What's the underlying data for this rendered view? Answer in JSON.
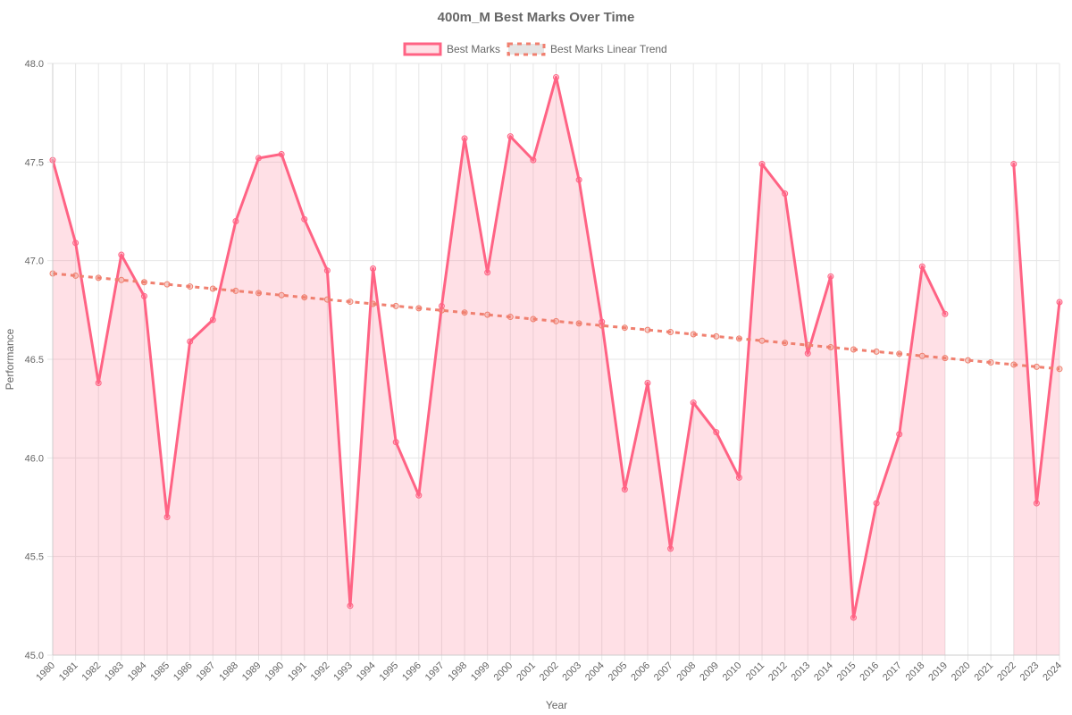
{
  "chart_data": {
    "type": "line",
    "title": "400m_M Best Marks Over Time",
    "xlabel": "Year",
    "ylabel": "Performance",
    "ylim": [
      45.0,
      48.0
    ],
    "yticks": [
      "45.0",
      "45.5",
      "46.0",
      "46.5",
      "47.0",
      "47.5",
      "48.0"
    ],
    "grid": true,
    "legend_position": "top",
    "categories": [
      "1980",
      "1981",
      "1982",
      "1983",
      "1984",
      "1985",
      "1986",
      "1987",
      "1988",
      "1989",
      "1990",
      "1991",
      "1992",
      "1993",
      "1994",
      "1995",
      "1996",
      "1997",
      "1998",
      "1999",
      "2000",
      "2001",
      "2002",
      "2003",
      "2004",
      "2005",
      "2006",
      "2007",
      "2008",
      "2009",
      "2010",
      "2011",
      "2012",
      "2013",
      "2014",
      "2015",
      "2016",
      "2017",
      "2018",
      "2019",
      "2020",
      "2021",
      "2022",
      "2023",
      "2024"
    ],
    "series": [
      {
        "name": "Best Marks",
        "color": "#ff6384",
        "fill": "rgba(255, 99, 132, 0.2)",
        "values": [
          47.51,
          47.09,
          46.38,
          47.03,
          46.82,
          45.7,
          46.59,
          46.7,
          47.2,
          47.52,
          47.54,
          47.21,
          46.95,
          45.25,
          46.96,
          46.08,
          45.81,
          46.77,
          47.62,
          46.94,
          47.63,
          47.51,
          47.93,
          47.41,
          46.69,
          45.84,
          46.38,
          45.54,
          46.28,
          46.13,
          45.9,
          47.49,
          47.34,
          46.53,
          46.92,
          45.19,
          45.77,
          46.12,
          46.97,
          46.73,
          null,
          null,
          47.49,
          45.77,
          46.79
        ]
      },
      {
        "name": "Best Marks Linear Trend",
        "color": "#f08070",
        "dashed": true,
        "values": [
          46.935,
          46.924,
          46.913,
          46.902,
          46.891,
          46.88,
          46.869,
          46.858,
          46.847,
          46.836,
          46.825,
          46.814,
          46.803,
          46.792,
          46.781,
          46.77,
          46.759,
          46.748,
          46.737,
          46.726,
          46.715,
          46.704,
          46.693,
          46.682,
          46.671,
          46.66,
          46.649,
          46.638,
          46.627,
          46.616,
          46.605,
          46.594,
          46.583,
          46.572,
          46.561,
          46.55,
          46.539,
          46.528,
          46.517,
          46.506,
          46.495,
          46.484,
          46.473,
          46.462,
          46.451
        ]
      }
    ]
  }
}
